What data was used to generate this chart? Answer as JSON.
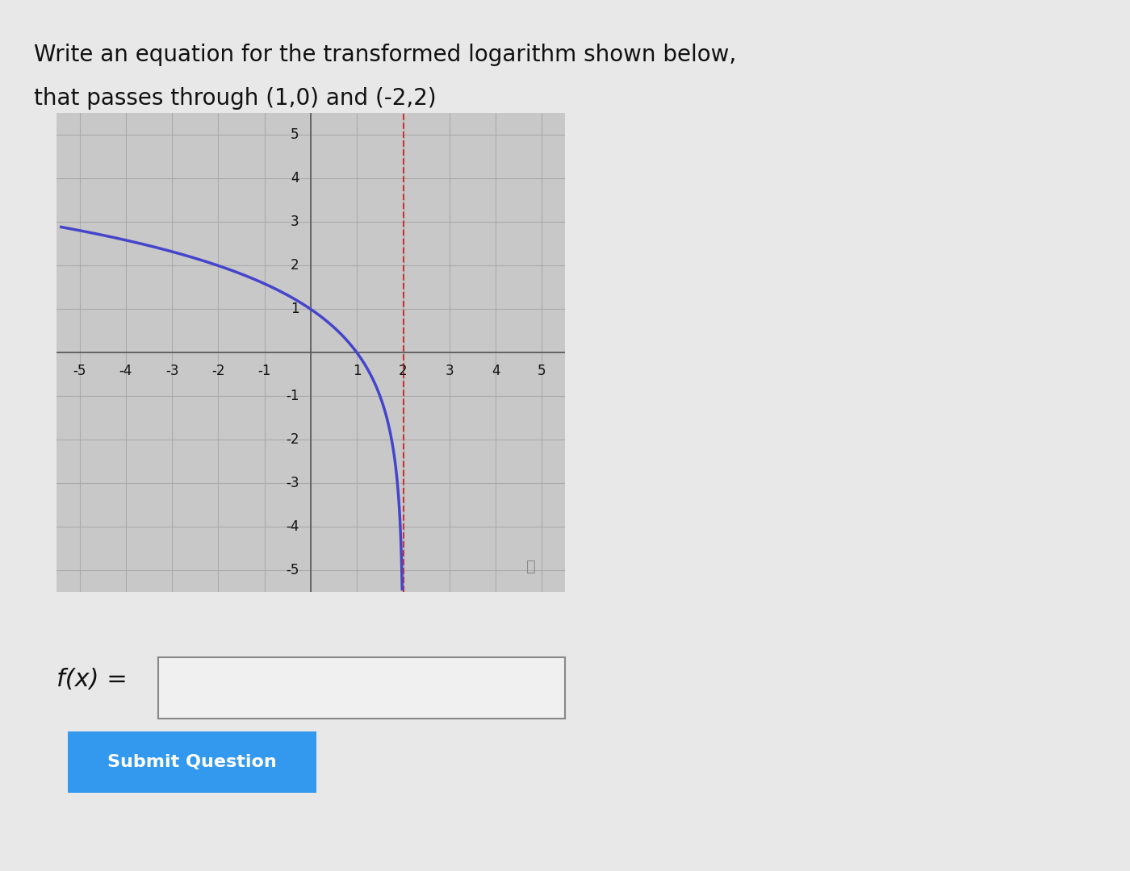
{
  "title_line1": "Write an equation for the transformed logarithm shown below,",
  "title_line2": "that passes through (1,0) and (-2,2)",
  "bg_color": "#d8d8d8",
  "page_bg": "#e8e8e8",
  "grid_bg": "#c8c8c8",
  "curve_color": "#4444cc",
  "asymptote_color": "#cc3333",
  "asymptote_x": 2.0,
  "xlim": [
    -5.5,
    5.5
  ],
  "ylim": [
    -5.5,
    5.5
  ],
  "xticks": [
    -5,
    -4,
    -3,
    -2,
    -1,
    1,
    2,
    3,
    4,
    5
  ],
  "yticks": [
    -5,
    -4,
    -3,
    -2,
    -1,
    1,
    2,
    3,
    4,
    5
  ],
  "label_fontsize": 12,
  "title_fontsize": 20,
  "fx_label": "f(x) =",
  "button_text": "Submit Question",
  "button_color": "#3399ee",
  "button_text_color": "#ffffff"
}
